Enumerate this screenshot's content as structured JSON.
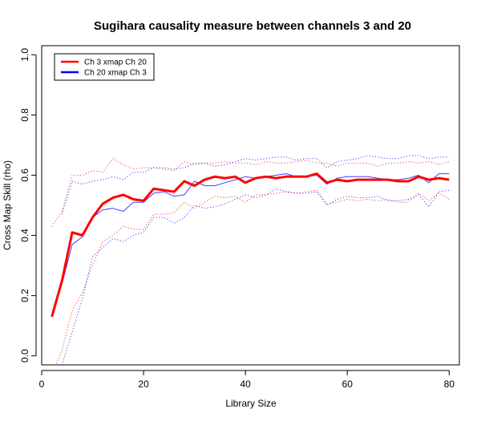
{
  "chart_data": {
    "type": "line",
    "title": "Sugihara causality measure between channels  3 and 20",
    "xlabel": "Library Size",
    "ylabel": "Cross Map Skill (rho)",
    "xlim": [
      0,
      82
    ],
    "ylim": [
      -0.03,
      1.03
    ],
    "x_ticks": [
      0,
      20,
      40,
      60,
      80
    ],
    "y_ticks": [
      0.0,
      0.2,
      0.4,
      0.6,
      0.8,
      1.0
    ],
    "x_tick_labels": [
      "0",
      "20",
      "40",
      "60",
      "80"
    ],
    "y_tick_labels": [
      "0.0",
      "0.2",
      "0.4",
      "0.6",
      "0.8",
      "1.0"
    ],
    "legend_position": "top-left",
    "legend": [
      {
        "label": "Ch 3 xmap Ch 20",
        "color": "#ff0000"
      },
      {
        "label": "Ch 20  xmap Ch 3",
        "color": "#0000ff"
      }
    ],
    "x": [
      2,
      4,
      6,
      8,
      10,
      12,
      14,
      16,
      18,
      20,
      22,
      24,
      26,
      28,
      30,
      32,
      34,
      36,
      38,
      40,
      42,
      44,
      46,
      48,
      50,
      52,
      54,
      56,
      58,
      60,
      62,
      64,
      66,
      68,
      70,
      72,
      74,
      76,
      78,
      80
    ],
    "series": [
      {
        "name": "Ch 3 xmap Ch 20",
        "color": "#ff0000",
        "style": "solid",
        "width": 3,
        "values": [
          0.13,
          0.25,
          0.41,
          0.4,
          0.46,
          0.505,
          0.525,
          0.535,
          0.52,
          0.515,
          0.555,
          0.55,
          0.545,
          0.58,
          0.565,
          0.585,
          0.595,
          0.59,
          0.595,
          0.575,
          0.59,
          0.595,
          0.59,
          0.595,
          0.595,
          0.595,
          0.605,
          0.575,
          0.585,
          0.58,
          0.585,
          0.585,
          0.585,
          0.585,
          0.58,
          0.58,
          0.595,
          0.585,
          0.59,
          0.585
        ]
      },
      {
        "name": "Ch 3 xmap Ch 20 upper",
        "color": "#ff0000",
        "style": "dotted",
        "width": 1,
        "values": [
          0.43,
          0.48,
          0.6,
          0.6,
          0.615,
          0.61,
          0.655,
          0.635,
          0.62,
          0.625,
          0.625,
          0.62,
          0.615,
          0.645,
          0.635,
          0.64,
          0.64,
          0.645,
          0.64,
          0.64,
          0.635,
          0.645,
          0.64,
          0.64,
          0.645,
          0.65,
          0.64,
          0.64,
          0.63,
          0.64,
          0.64,
          0.64,
          0.63,
          0.64,
          0.64,
          0.645,
          0.64,
          0.645,
          0.635,
          0.645
        ]
      },
      {
        "name": "Ch 3 xmap Ch 20 lower",
        "color": "#ff0000",
        "style": "dotted",
        "width": 1,
        "values": [
          -0.06,
          0.02,
          0.15,
          0.21,
          0.3,
          0.38,
          0.4,
          0.43,
          0.42,
          0.42,
          0.47,
          0.47,
          0.475,
          0.51,
          0.49,
          0.51,
          0.53,
          0.525,
          0.53,
          0.51,
          0.535,
          0.535,
          0.54,
          0.545,
          0.54,
          0.545,
          0.55,
          0.505,
          0.51,
          0.52,
          0.515,
          0.52,
          0.515,
          0.52,
          0.51,
          0.51,
          0.54,
          0.515,
          0.54,
          0.52
        ]
      },
      {
        "name": "Ch 20 xmap Ch 3",
        "color": "#0000ff",
        "style": "solid",
        "width": 1,
        "values": [
          null,
          0.24,
          0.37,
          0.395,
          0.46,
          0.485,
          0.49,
          0.48,
          0.51,
          0.51,
          0.54,
          0.545,
          0.53,
          0.535,
          0.58,
          0.565,
          0.565,
          0.575,
          0.585,
          0.595,
          0.59,
          0.595,
          0.6,
          0.605,
          0.595,
          0.595,
          0.6,
          0.57,
          0.59,
          0.595,
          0.595,
          0.595,
          0.59,
          0.585,
          0.585,
          0.59,
          0.6,
          0.575,
          0.605,
          0.605
        ]
      },
      {
        "name": "Ch 20 xmap Ch 3 upper",
        "color": "#0000ff",
        "style": "dotted",
        "width": 1,
        "values": [
          null,
          0.47,
          0.58,
          0.57,
          0.58,
          0.585,
          0.595,
          0.585,
          0.61,
          0.61,
          0.625,
          0.625,
          0.62,
          0.625,
          0.64,
          0.64,
          0.63,
          0.635,
          0.645,
          0.655,
          0.65,
          0.655,
          0.66,
          0.66,
          0.65,
          0.655,
          0.655,
          0.625,
          0.645,
          0.65,
          0.655,
          0.665,
          0.66,
          0.655,
          0.655,
          0.665,
          0.665,
          0.655,
          0.66,
          0.66
        ]
      },
      {
        "name": "Ch 20 xmap Ch 3 lower",
        "color": "#0000ff",
        "style": "dotted",
        "width": 1,
        "values": [
          null,
          -0.03,
          0.08,
          0.19,
          0.33,
          0.36,
          0.39,
          0.38,
          0.4,
          0.41,
          0.46,
          0.46,
          0.44,
          0.46,
          0.5,
          0.49,
          0.495,
          0.505,
          0.52,
          0.535,
          0.525,
          0.535,
          0.555,
          0.545,
          0.54,
          0.54,
          0.545,
          0.5,
          0.52,
          0.53,
          0.525,
          0.525,
          0.53,
          0.515,
          0.515,
          0.52,
          0.535,
          0.495,
          0.545,
          0.55
        ]
      }
    ]
  }
}
